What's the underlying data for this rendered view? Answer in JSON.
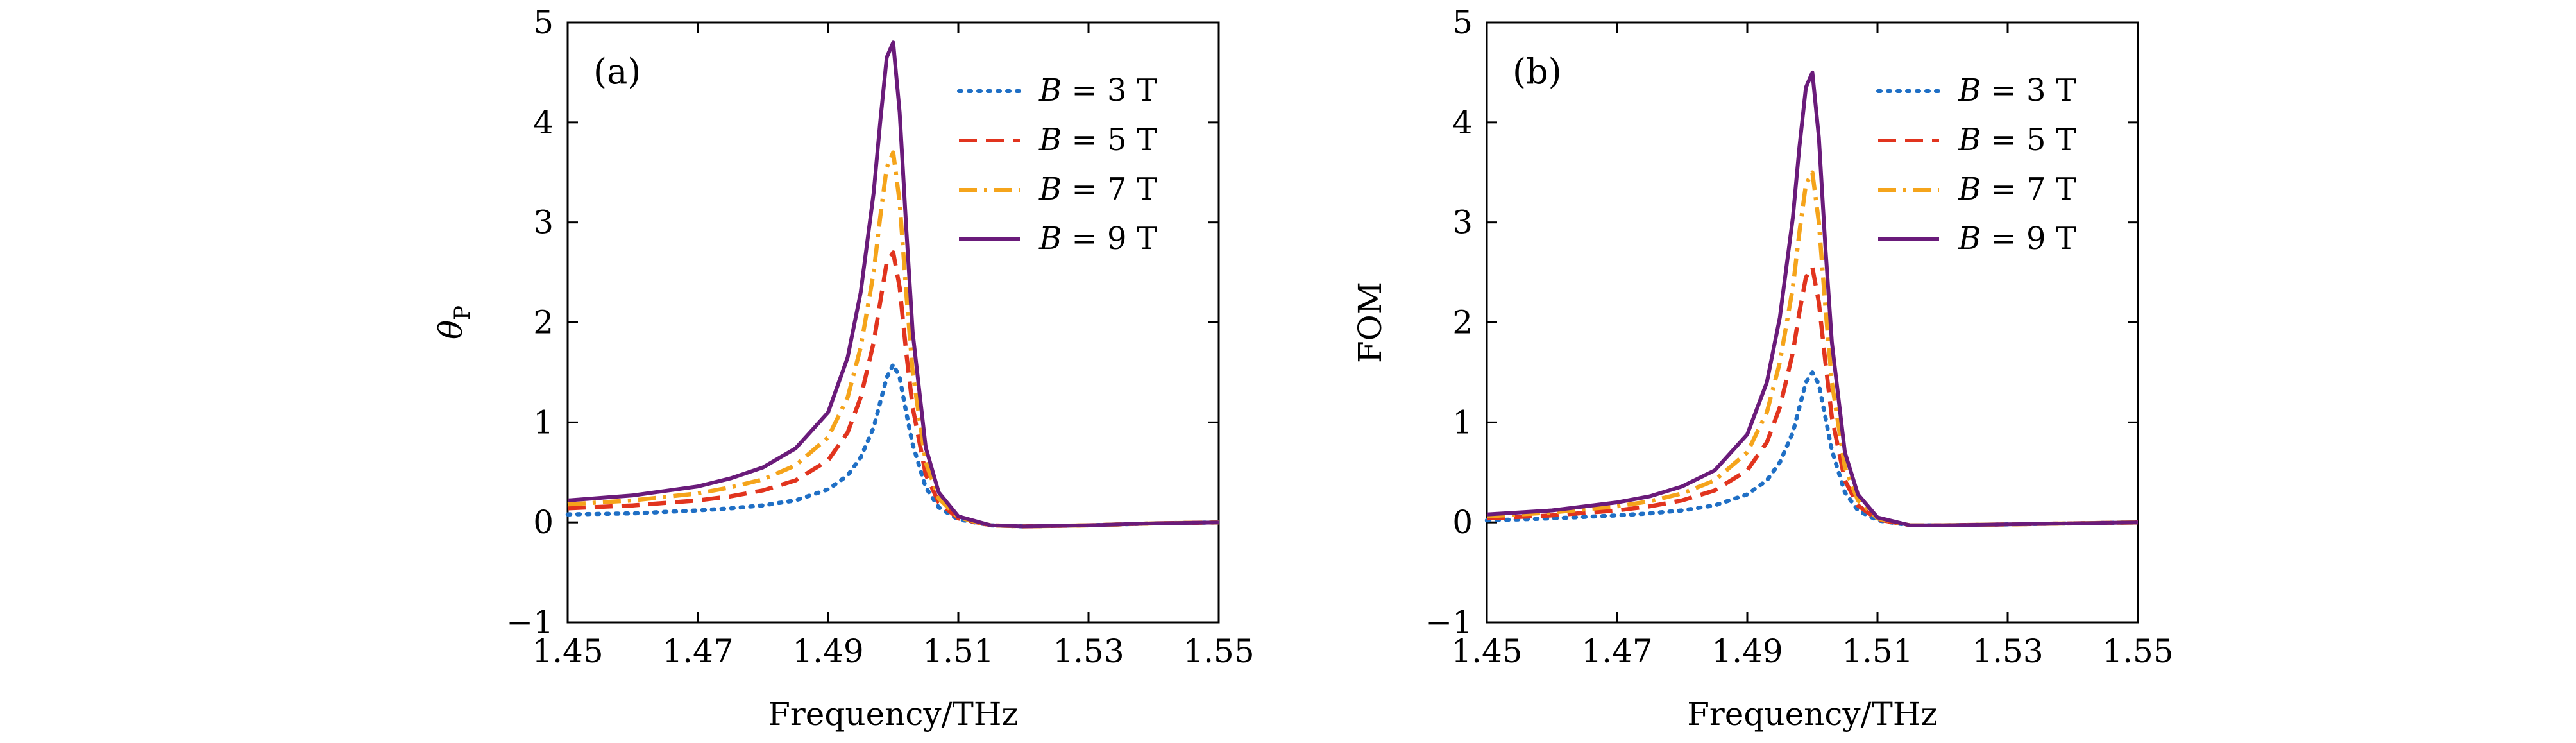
{
  "chart_data": [
    {
      "type": "line",
      "panel_label": "(a)",
      "xlabel": "Frequency/THz",
      "ylabel": "θ",
      "ylabel_sub": "P",
      "xlim": [
        1.45,
        1.55
      ],
      "ylim": [
        -1,
        5
      ],
      "xticks": [
        "1.45",
        "1.47",
        "1.49",
        "1.51",
        "1.53",
        "1.55"
      ],
      "yticks": [
        "−1",
        "0",
        "1",
        "2",
        "3",
        "4",
        "5"
      ],
      "legend_position": "top-right",
      "series": [
        {
          "name": "B = 3 T",
          "name_var": "B",
          "name_rest": " = 3 T",
          "color": "#1f6fc5",
          "dash": "dotted",
          "x": [
            1.45,
            1.46,
            1.47,
            1.475,
            1.48,
            1.485,
            1.49,
            1.493,
            1.495,
            1.497,
            1.498,
            1.499,
            1.5,
            1.501,
            1.502,
            1.503,
            1.505,
            1.507,
            1.51,
            1.515,
            1.52,
            1.53,
            1.54,
            1.55
          ],
          "y": [
            0.08,
            0.09,
            0.12,
            0.14,
            0.17,
            0.22,
            0.33,
            0.47,
            0.65,
            0.95,
            1.2,
            1.45,
            1.58,
            1.45,
            1.1,
            0.78,
            0.35,
            0.15,
            0.03,
            -0.03,
            -0.04,
            -0.03,
            -0.01,
            0.0
          ]
        },
        {
          "name": "B = 5 T",
          "name_var": "B",
          "name_rest": " = 5 T",
          "color": "#e1341e",
          "dash": "dashed",
          "x": [
            1.45,
            1.46,
            1.47,
            1.475,
            1.48,
            1.485,
            1.49,
            1.493,
            1.495,
            1.497,
            1.498,
            1.499,
            1.5,
            1.501,
            1.502,
            1.503,
            1.505,
            1.507,
            1.51,
            1.515,
            1.52,
            1.53,
            1.54,
            1.55
          ],
          "y": [
            0.14,
            0.17,
            0.22,
            0.26,
            0.32,
            0.42,
            0.62,
            0.9,
            1.25,
            1.8,
            2.2,
            2.6,
            2.7,
            2.35,
            1.7,
            1.15,
            0.48,
            0.2,
            0.04,
            -0.03,
            -0.04,
            -0.03,
            -0.01,
            0.0
          ]
        },
        {
          "name": "B = 7 T",
          "name_var": "B",
          "name_rest": " = 7 T",
          "color": "#f5a41b",
          "dash": "dashdot",
          "x": [
            1.45,
            1.46,
            1.47,
            1.475,
            1.48,
            1.485,
            1.49,
            1.493,
            1.495,
            1.497,
            1.498,
            1.499,
            1.5,
            1.501,
            1.502,
            1.503,
            1.505,
            1.507,
            1.51,
            1.515,
            1.52,
            1.53,
            1.54,
            1.55
          ],
          "y": [
            0.18,
            0.22,
            0.29,
            0.35,
            0.43,
            0.57,
            0.85,
            1.25,
            1.75,
            2.5,
            3.05,
            3.55,
            3.7,
            3.2,
            2.3,
            1.5,
            0.6,
            0.24,
            0.05,
            -0.03,
            -0.04,
            -0.03,
            -0.01,
            0.0
          ]
        },
        {
          "name": "B = 9 T",
          "name_var": "B",
          "name_rest": " = 9 T",
          "color": "#6a1b7a",
          "dash": "solid",
          "x": [
            1.45,
            1.46,
            1.47,
            1.475,
            1.48,
            1.485,
            1.49,
            1.493,
            1.495,
            1.497,
            1.498,
            1.499,
            1.5,
            1.501,
            1.502,
            1.503,
            1.505,
            1.507,
            1.51,
            1.515,
            1.52,
            1.53,
            1.54,
            1.55
          ],
          "y": [
            0.22,
            0.27,
            0.36,
            0.44,
            0.55,
            0.74,
            1.1,
            1.65,
            2.3,
            3.3,
            4.0,
            4.65,
            4.8,
            4.1,
            2.95,
            1.9,
            0.75,
            0.3,
            0.06,
            -0.03,
            -0.04,
            -0.03,
            -0.01,
            0.0
          ]
        }
      ]
    },
    {
      "type": "line",
      "panel_label": "(b)",
      "xlabel": "Frequency/THz",
      "ylabel": "FOM",
      "ylabel_sub": "",
      "xlim": [
        1.45,
        1.55
      ],
      "ylim": [
        -1,
        5
      ],
      "xticks": [
        "1.45",
        "1.47",
        "1.49",
        "1.51",
        "1.53",
        "1.55"
      ],
      "yticks": [
        "−1",
        "0",
        "1",
        "2",
        "3",
        "4",
        "5"
      ],
      "legend_position": "top-right",
      "series": [
        {
          "name": "B = 3 T",
          "name_var": "B",
          "name_rest": " = 3 T",
          "color": "#1f6fc5",
          "dash": "dotted",
          "x": [
            1.45,
            1.46,
            1.47,
            1.475,
            1.48,
            1.485,
            1.49,
            1.493,
            1.495,
            1.497,
            1.498,
            1.499,
            1.5,
            1.501,
            1.502,
            1.503,
            1.505,
            1.507,
            1.51,
            1.515,
            1.52,
            1.53,
            1.54,
            1.55
          ],
          "y": [
            0.02,
            0.04,
            0.07,
            0.09,
            0.12,
            0.17,
            0.28,
            0.42,
            0.6,
            0.9,
            1.15,
            1.4,
            1.5,
            1.38,
            1.05,
            0.72,
            0.3,
            0.12,
            0.02,
            -0.03,
            -0.03,
            -0.02,
            -0.01,
            0.0
          ]
        },
        {
          "name": "B = 5 T",
          "name_var": "B",
          "name_rest": " = 5 T",
          "color": "#e1341e",
          "dash": "dashed",
          "x": [
            1.45,
            1.46,
            1.47,
            1.475,
            1.48,
            1.485,
            1.49,
            1.493,
            1.495,
            1.497,
            1.498,
            1.499,
            1.5,
            1.501,
            1.502,
            1.503,
            1.505,
            1.507,
            1.51,
            1.515,
            1.52,
            1.53,
            1.54,
            1.55
          ],
          "y": [
            0.04,
            0.07,
            0.12,
            0.16,
            0.22,
            0.32,
            0.52,
            0.8,
            1.15,
            1.7,
            2.1,
            2.45,
            2.55,
            2.2,
            1.6,
            1.05,
            0.42,
            0.17,
            0.03,
            -0.03,
            -0.03,
            -0.02,
            -0.01,
            0.0
          ]
        },
        {
          "name": "B = 7 T",
          "name_var": "B",
          "name_rest": " = 7 T",
          "color": "#f5a41b",
          "dash": "dashdot",
          "x": [
            1.45,
            1.46,
            1.47,
            1.475,
            1.48,
            1.485,
            1.49,
            1.493,
            1.495,
            1.497,
            1.498,
            1.499,
            1.5,
            1.501,
            1.502,
            1.503,
            1.505,
            1.507,
            1.51,
            1.515,
            1.52,
            1.53,
            1.54,
            1.55
          ],
          "y": [
            0.06,
            0.1,
            0.16,
            0.21,
            0.29,
            0.42,
            0.7,
            1.1,
            1.6,
            2.35,
            2.9,
            3.38,
            3.5,
            3.0,
            2.15,
            1.4,
            0.55,
            0.22,
            0.04,
            -0.03,
            -0.03,
            -0.02,
            -0.01,
            0.0
          ]
        },
        {
          "name": "B = 9 T",
          "name_var": "B",
          "name_rest": " = 9 T",
          "color": "#6a1b7a",
          "dash": "solid",
          "x": [
            1.45,
            1.46,
            1.47,
            1.475,
            1.48,
            1.485,
            1.49,
            1.493,
            1.495,
            1.497,
            1.498,
            1.499,
            1.5,
            1.501,
            1.502,
            1.503,
            1.505,
            1.507,
            1.51,
            1.515,
            1.52,
            1.53,
            1.54,
            1.55
          ],
          "y": [
            0.08,
            0.12,
            0.2,
            0.26,
            0.36,
            0.52,
            0.88,
            1.4,
            2.05,
            3.05,
            3.75,
            4.35,
            4.5,
            3.85,
            2.75,
            1.8,
            0.7,
            0.28,
            0.05,
            -0.03,
            -0.03,
            -0.02,
            -0.01,
            0.0
          ]
        }
      ]
    }
  ]
}
